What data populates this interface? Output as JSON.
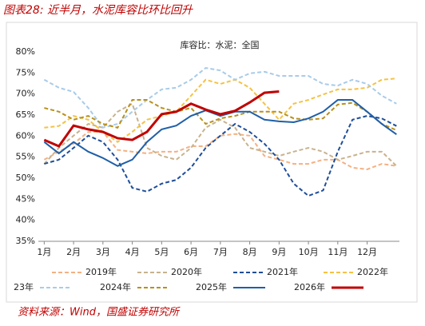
{
  "title": "图表28:  近半月，水泥库容比环比回升",
  "source": "资料来源：Wind，国盛证券研究所",
  "chart_data": {
    "type": "line",
    "subtitle": "库容比：水泥：全国",
    "x": [
      1,
      1.5,
      2,
      2.5,
      3,
      3.5,
      4,
      4.5,
      5,
      5.5,
      6,
      6.5,
      7,
      7.5,
      8,
      8.5,
      9,
      9.5,
      10,
      10.5,
      11,
      11.5,
      12,
      12.5,
      13
    ],
    "xlim": [
      0.8,
      13.1
    ],
    "xticks": [
      {
        "value": 1,
        "label": "1月"
      },
      {
        "value": 2,
        "label": "2月"
      },
      {
        "value": 3,
        "label": "3月"
      },
      {
        "value": 4,
        "label": "4月"
      },
      {
        "value": 5,
        "label": "5月"
      },
      {
        "value": 6,
        "label": "6月"
      },
      {
        "value": 7,
        "label": "7月"
      },
      {
        "value": 8,
        "label": "8月"
      },
      {
        "value": 9,
        "label": "9月"
      },
      {
        "value": 10,
        "label": "10月"
      },
      {
        "value": 11,
        "label": "11月"
      },
      {
        "value": 12,
        "label": "12月"
      }
    ],
    "ylim": [
      35,
      80
    ],
    "yticks": [
      {
        "value": 35,
        "label": "35%"
      },
      {
        "value": 40,
        "label": "40%"
      },
      {
        "value": 45,
        "label": "45%"
      },
      {
        "value": 50,
        "label": "50%"
      },
      {
        "value": 55,
        "label": "55%"
      },
      {
        "value": 60,
        "label": "60%"
      },
      {
        "value": 65,
        "label": "65%"
      },
      {
        "value": 70,
        "label": "70%"
      },
      {
        "value": 75,
        "label": "75%"
      },
      {
        "value": 80,
        "label": "80%"
      }
    ],
    "grid": false,
    "series": [
      {
        "name": "2019年",
        "color": "#f4b183",
        "dashed": true,
        "values": [
          54.4,
          56.3,
          58.2,
          61,
          61,
          56.7,
          56.3,
          55.9,
          56.3,
          56.3,
          57.6,
          57.6,
          60.1,
          60.5,
          60.1,
          55.3,
          54.4,
          53.4,
          53.4,
          54.4,
          54.4,
          52.5,
          52.1,
          53.4,
          52.9
        ]
      },
      {
        "name": "2020年",
        "color": "#c8b38e",
        "dashed": true,
        "values": [
          53.4,
          57.2,
          60.1,
          62.9,
          62,
          65.8,
          67.7,
          57.2,
          55.3,
          54.4,
          57.2,
          62,
          63.9,
          62,
          57.2,
          56.3,
          55.3,
          56.3,
          57.2,
          56.3,
          54.4,
          55.3,
          56.3,
          56.3,
          52.9
        ]
      },
      {
        "name": "2021年",
        "color": "#1f4e9a",
        "dashed": true,
        "values": [
          53.4,
          54.4,
          57.2,
          60.1,
          58.6,
          54.4,
          47.7,
          46.8,
          48.7,
          49.6,
          52.5,
          57.2,
          60.1,
          62.9,
          61,
          58.2,
          54.4,
          48.7,
          45.8,
          47.1,
          56.3,
          63.9,
          64.8,
          64.2,
          62.4
        ]
      },
      {
        "name": "2022年",
        "color": "#f5c242",
        "dashed": true,
        "values": [
          62,
          62.4,
          64.8,
          63.9,
          61,
          58.6,
          61,
          63.9,
          64.8,
          65.8,
          69.6,
          73.4,
          72.4,
          73.4,
          71.5,
          67.7,
          63.9,
          67.7,
          68.6,
          69.9,
          71.1,
          71.1,
          71.5,
          73.4,
          73.7
        ]
      },
      {
        "name": "23年",
        "color": "#a9cbe8",
        "dashed": true,
        "values": [
          73.4,
          71.5,
          70.5,
          66.7,
          62,
          62.9,
          65.8,
          68.6,
          71.1,
          71.5,
          73.4,
          76.2,
          75.6,
          73.4,
          74.9,
          75.3,
          74.3,
          74.3,
          74.3,
          72.4,
          72,
          73.4,
          72.4,
          69.6,
          67.7
        ]
      },
      {
        "name": "2024年",
        "color": "#b8901c",
        "dashed": true,
        "values": [
          66.7,
          65.8,
          63.9,
          64.8,
          62.9,
          62,
          68.6,
          68.6,
          66.7,
          65.8,
          66.7,
          62.9,
          64.2,
          64.8,
          65.8,
          65.8,
          65.8,
          64.2,
          63.9,
          64.2,
          67.5,
          67.9,
          65.8,
          62.9,
          61.4
        ]
      },
      {
        "name": "2025年",
        "color": "#1f5fa8",
        "dashed": false,
        "values": [
          58.6,
          55.9,
          58.6,
          56.3,
          54.8,
          52.9,
          54.4,
          58.6,
          61.6,
          62.5,
          64.8,
          66.1,
          64.8,
          65.8,
          65.8,
          63.9,
          63.5,
          63.3,
          64.2,
          65.8,
          68.6,
          68.6,
          65.8,
          62.9,
          60.4
        ]
      },
      {
        "name": "2026年",
        "color": "#c00000",
        "dashed": false,
        "values": [
          59.1,
          57.6,
          62.5,
          61.6,
          61,
          59.5,
          59.1,
          61,
          65.2,
          65.8,
          67.7,
          66.3,
          65.2,
          66,
          68,
          70.3,
          70.6,
          null,
          null,
          null,
          null,
          null,
          null,
          null,
          null
        ]
      }
    ]
  }
}
